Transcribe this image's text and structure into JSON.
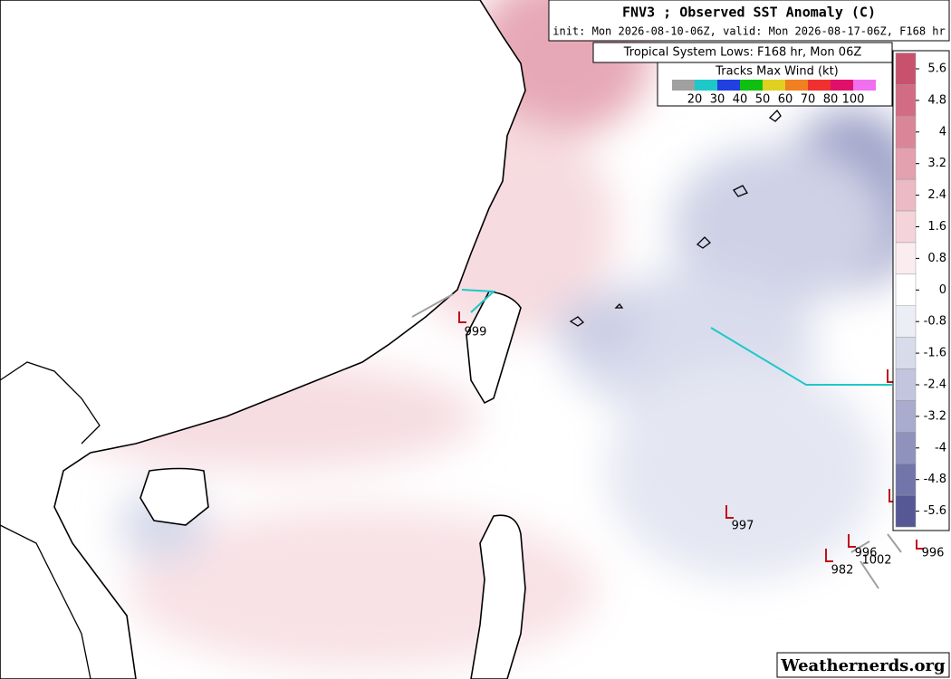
{
  "header": {
    "title": "FNV3 ; Observed SST Anomaly (C)",
    "subtitle": "init: Mon 2026-08-10-06Z, valid: Mon 2026-08-17-06Z, F168 hr",
    "lows_title": "Tropical System Lows: F168 hr, Mon 06Z"
  },
  "wind_legend": {
    "title": "Tracks Max Wind (kt)",
    "labels": [
      20,
      30,
      40,
      50,
      60,
      70,
      80,
      100
    ],
    "colors": [
      "#a0a0a0",
      "#1ec8c8",
      "#2040e0",
      "#10c010",
      "#e0d020",
      "#f08020",
      "#f03030",
      "#e0106a",
      "#f070f0"
    ]
  },
  "colorbar": {
    "ticks": [
      5.6,
      4.8,
      4,
      3.2,
      2.4,
      1.6,
      0.8,
      0,
      -0.8,
      -1.6,
      -2.4,
      -3.2,
      -4,
      -4.8,
      -5.6
    ],
    "colors": [
      "#c8526e",
      "#d26c84",
      "#db8698",
      "#e4a0ae",
      "#ecbac4",
      "#f4d4da",
      "#fbecef",
      "#ffffff",
      "#eceef6",
      "#d8dbea",
      "#c2c5dd",
      "#a9acce",
      "#8f92bd",
      "#7275aa",
      "#555894"
    ]
  },
  "lows": [
    999,
    997,
    996,
    1002,
    982,
    996
  ],
  "credit": "Weathernerds.org"
}
